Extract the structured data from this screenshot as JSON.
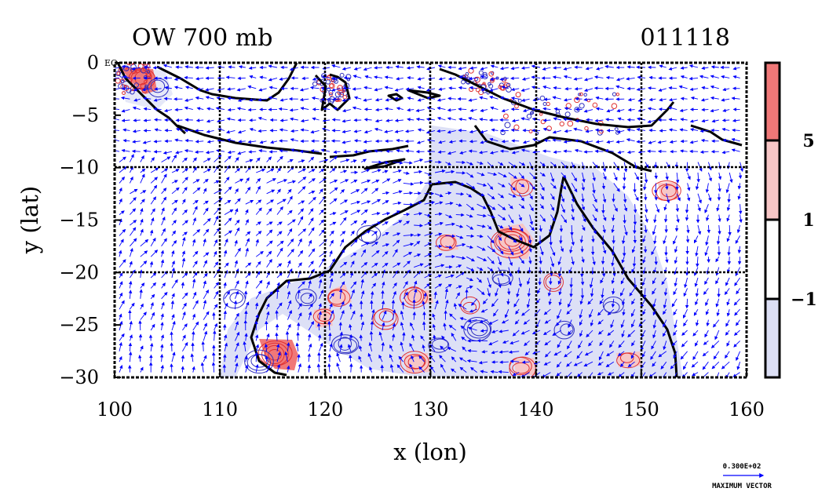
{
  "title": {
    "left": "OW 700 mb",
    "right": "011118"
  },
  "axes": {
    "xlabel": "x (lon)",
    "ylabel": "y (lat)",
    "x_ticks": [
      "100",
      "110",
      "120",
      "130",
      "140",
      "150",
      "160"
    ],
    "y_ticks": [
      "0",
      "−5",
      "−10",
      "−15",
      "−20",
      "−25",
      "−30"
    ],
    "x_range": [
      100,
      160
    ],
    "y_range": [
      -30,
      0
    ],
    "corner_label": "EQ"
  },
  "colorbar": {
    "ticks": [
      "5",
      "1",
      "−1"
    ],
    "levels": [
      {
        "name": "above-5",
        "color": "#f07878"
      },
      {
        "name": "1-to-5",
        "color": "#f7c6c6"
      },
      {
        "name": "minus1-to-1",
        "color": "#ffffff"
      },
      {
        "name": "below-minus1",
        "color": "#dcdff5"
      }
    ]
  },
  "vector_key": {
    "value": "0.300E+02",
    "label": "MAXIMUM VECTOR"
  },
  "colors": {
    "land_outline": "#000000",
    "vectors": "#0000ff",
    "positive_contour": "#e03030",
    "negative_contour": "#3030c0",
    "grid": "#000000"
  }
}
